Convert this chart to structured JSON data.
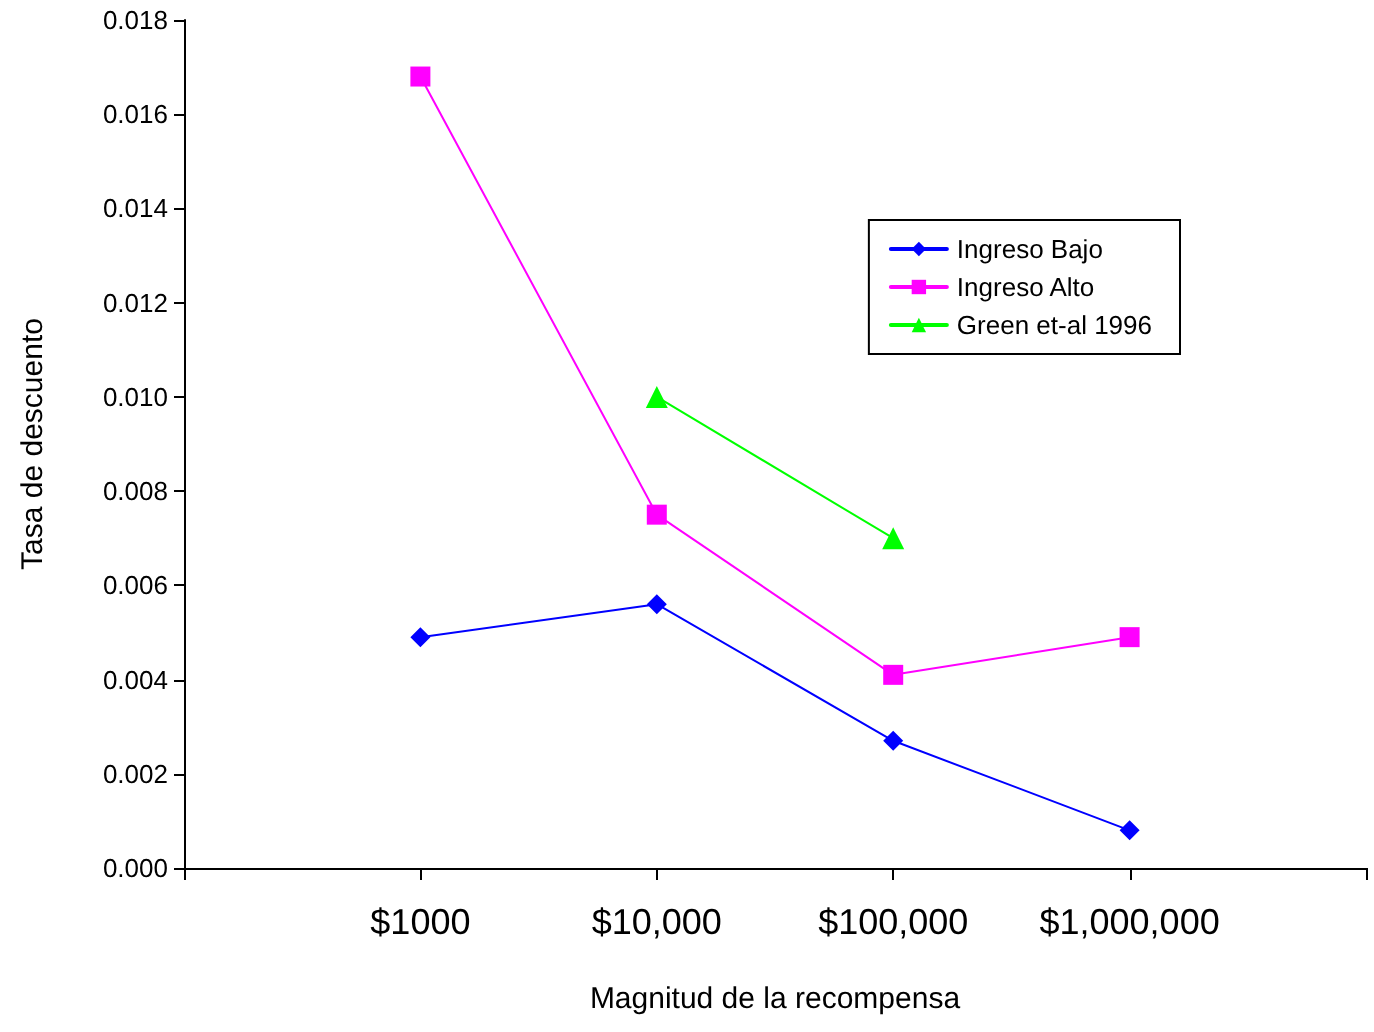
{
  "chart_data": {
    "type": "line",
    "xlabel": "Magnitud de la recompensa",
    "ylabel": "Tasa de descuento",
    "categories": [
      null,
      "$1000",
      "$10,000",
      "$100,000",
      "$1,000,000",
      null
    ],
    "series": [
      {
        "name": "Ingreso Bajo",
        "color": "#0000ff",
        "marker": "diamond",
        "values": [
          null,
          0.0049,
          0.0056,
          0.0027,
          0.0008,
          null
        ]
      },
      {
        "name": "Ingreso Alto",
        "color": "#ff00ff",
        "marker": "square",
        "values": [
          null,
          0.0168,
          0.0075,
          0.0041,
          0.0049,
          null
        ]
      },
      {
        "name": "Green et-al 1996",
        "color": "#00ff00",
        "marker": "triangle",
        "values": [
          null,
          null,
          0.01,
          0.007,
          null,
          null
        ]
      }
    ],
    "ylim": [
      0,
      0.018
    ],
    "yticks": [
      {
        "value": 0,
        "label": "0.000"
      },
      {
        "value": 0.002,
        "label": "0.002"
      },
      {
        "value": 0.004,
        "label": "0.004"
      },
      {
        "value": 0.006,
        "label": "0.006"
      },
      {
        "value": 0.008,
        "label": "0.008"
      },
      {
        "value": 0.01,
        "label": "0.010"
      },
      {
        "value": 0.012,
        "label": "0.012"
      },
      {
        "value": 0.014,
        "label": "0.014"
      },
      {
        "value": 0.016,
        "label": "0.016"
      },
      {
        "value": 0.018,
        "label": "0.018"
      }
    ],
    "grid": false,
    "legend": "top right"
  }
}
